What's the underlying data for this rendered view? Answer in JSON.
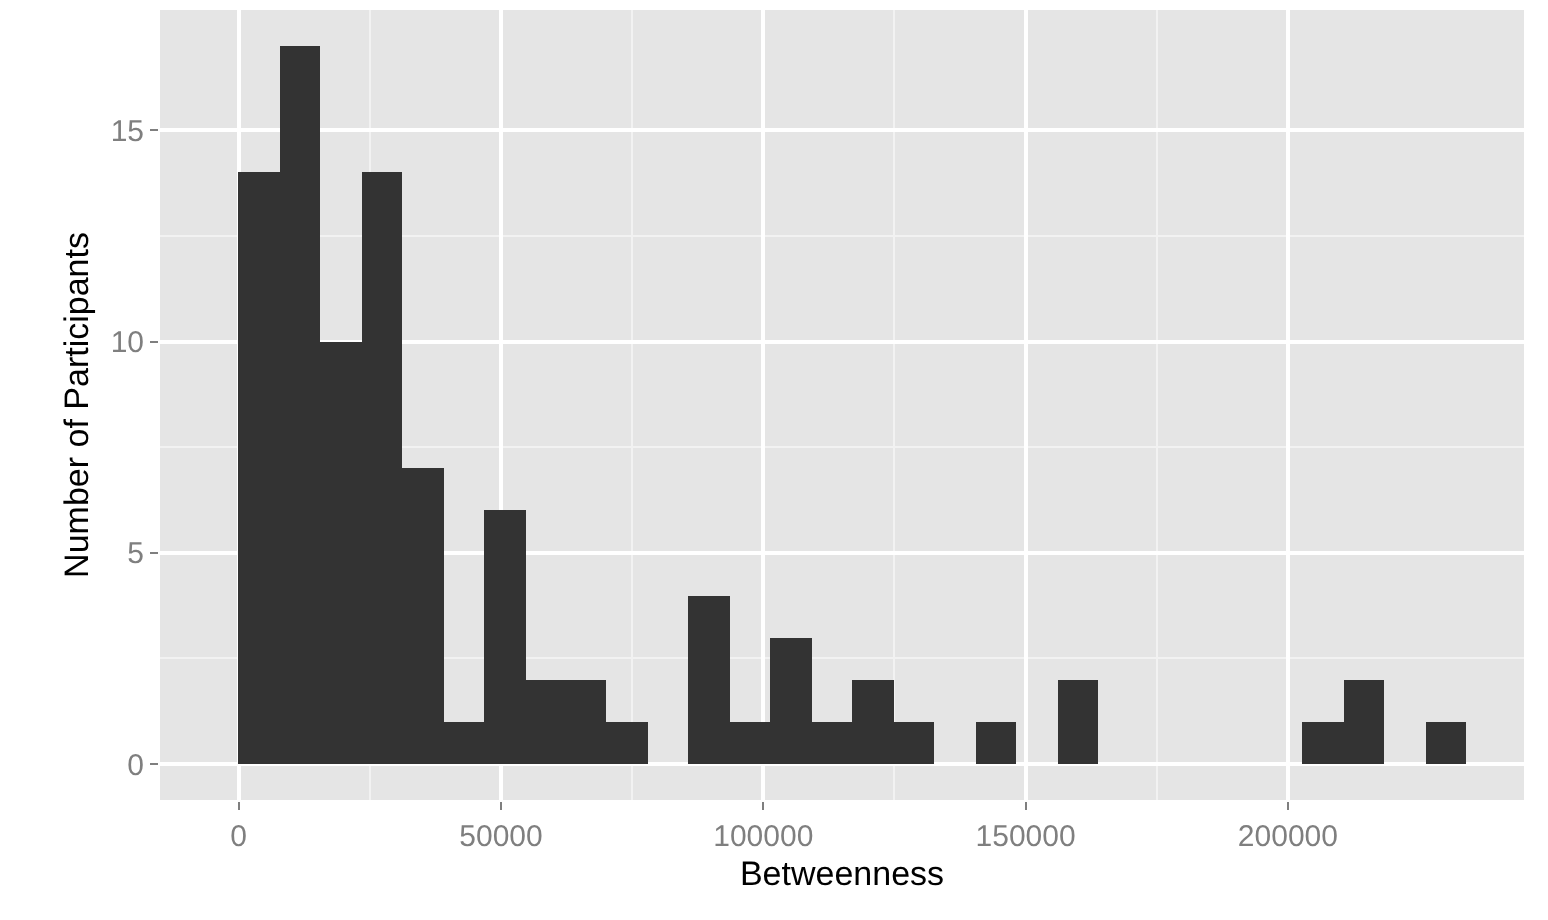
{
  "chart_data": {
    "type": "histogram",
    "xlabel": "Betweenness",
    "ylabel": "Number of Participants",
    "bins": [
      0,
      7800,
      15600,
      23400,
      31200,
      39000,
      46800,
      54600,
      62400,
      70200,
      78000,
      85800,
      93600,
      101400,
      109200,
      117000,
      124800,
      132600,
      140400,
      148200,
      156000,
      163800,
      171600,
      179400,
      187200,
      195000,
      202800,
      210600,
      218400,
      226200,
      234000
    ],
    "values": [
      14,
      17,
      10,
      14,
      7,
      1,
      6,
      2,
      2,
      1,
      0,
      4,
      1,
      3,
      1,
      2,
      1,
      0,
      1,
      0,
      2,
      0,
      0,
      0,
      0,
      0,
      1,
      2,
      0,
      1
    ],
    "color": "#333333",
    "xlim": [
      -15000,
      245000
    ],
    "xticks": [
      0,
      50000,
      100000,
      150000,
      200000
    ],
    "ylim": [
      -0.85,
      17.85
    ],
    "yticks": [
      0,
      5,
      10,
      15
    ],
    "grid": true
  }
}
